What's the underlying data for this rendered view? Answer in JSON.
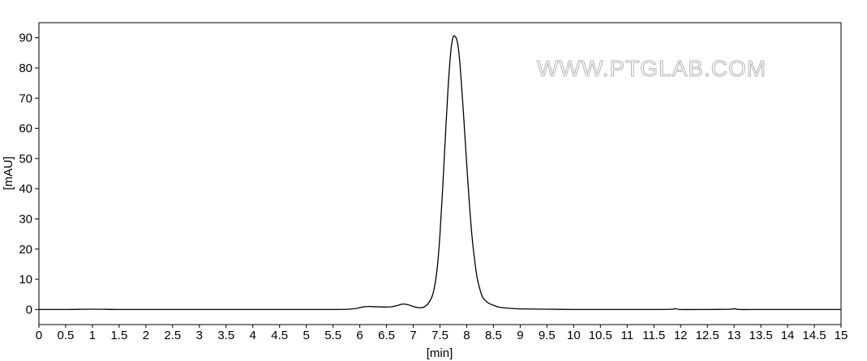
{
  "chart_data": {
    "type": "line",
    "xlabel": "[min]",
    "ylabel": "[mAU]",
    "xlim": [
      0,
      15
    ],
    "ylim": [
      -5,
      95
    ],
    "xticks": [
      0,
      0.5,
      1,
      1.5,
      2,
      2.5,
      3,
      3.5,
      4,
      4.5,
      5,
      5.5,
      6,
      6.5,
      7,
      7.5,
      8,
      8.5,
      9,
      9.5,
      10,
      10.5,
      11,
      11.5,
      12,
      12.5,
      13,
      13.5,
      14,
      14.5,
      15
    ],
    "yticks": [
      0,
      10,
      20,
      30,
      40,
      50,
      60,
      70,
      80,
      90
    ],
    "grid": false,
    "legend": "none",
    "watermark": "WWW.PTGLAB.COM",
    "series": [
      {
        "color": "#000000",
        "x": [
          0,
          0.5,
          1,
          1.5,
          2,
          2.5,
          3,
          3.5,
          4,
          4.5,
          5,
          5.5,
          5.8,
          5.95,
          6.05,
          6.15,
          6.3,
          6.5,
          6.6,
          6.7,
          6.8,
          6.9,
          7.0,
          7.1,
          7.2,
          7.3,
          7.38,
          7.45,
          7.5,
          7.55,
          7.6,
          7.65,
          7.7,
          7.74,
          7.78,
          7.82,
          7.86,
          7.9,
          7.95,
          8.0,
          8.05,
          8.1,
          8.15,
          8.2,
          8.25,
          8.3,
          8.4,
          8.5,
          8.6,
          8.8,
          9.0,
          9.5,
          10,
          10.5,
          11,
          11.5,
          11.85,
          11.9,
          12.0,
          12.5,
          12.95,
          13.0,
          13.1,
          13.5,
          14,
          14.5,
          15
        ],
        "y": [
          0,
          0,
          0.1,
          0,
          0,
          0,
          0,
          0,
          0,
          0,
          0,
          0,
          0.1,
          0.4,
          0.8,
          1.0,
          0.9,
          0.8,
          0.9,
          1.3,
          1.8,
          1.6,
          1.0,
          0.6,
          0.8,
          2.5,
          6,
          14,
          25,
          40,
          57,
          73,
          85,
          90,
          90.5,
          89,
          84,
          75,
          62,
          48,
          35,
          24,
          16,
          10,
          6.5,
          4,
          2.2,
          1.4,
          0.8,
          0.4,
          0.2,
          0.1,
          0,
          0,
          0,
          0,
          0.1,
          0.3,
          0,
          0,
          0.1,
          0.3,
          0,
          0,
          0,
          0,
          0
        ]
      }
    ]
  }
}
